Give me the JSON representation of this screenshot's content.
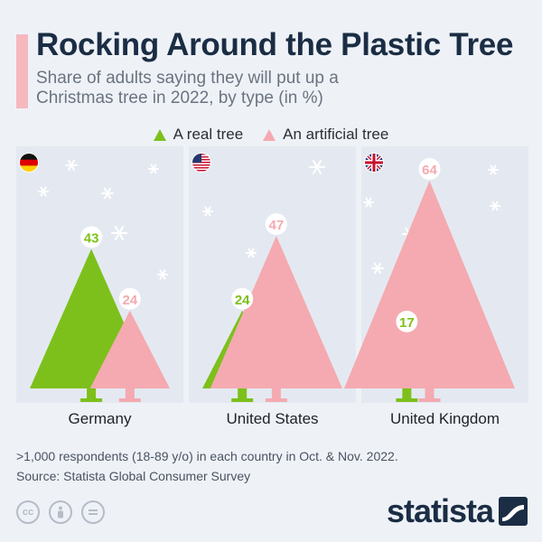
{
  "header": {
    "title": "Rocking Around the Plastic Tree",
    "subtitle": "Share of adults saying they will put up a Christmas tree in 2022, by type (in %)"
  },
  "colors": {
    "real": "#7dc01b",
    "artificial": "#f4aab0",
    "panel": "#e4e9f1",
    "text_dark": "#1b2d44"
  },
  "chart_data": {
    "type": "bar",
    "title": "Rocking Around the Plastic Tree",
    "subtitle": "Share of adults saying they will put up a Christmas tree in 2022, by type (in %)",
    "categories": [
      "Germany",
      "United States",
      "United Kingdom"
    ],
    "series": [
      {
        "name": "A real tree",
        "values": [
          43,
          24,
          17
        ]
      },
      {
        "name": "An artificial tree",
        "values": [
          24,
          47,
          64
        ]
      }
    ],
    "ylim": [
      0,
      64
    ],
    "xlabel": "",
    "ylabel": "",
    "legend": "top-center"
  },
  "footnote": {
    "line1": ">1,000 respondents (18-89 y/o) in each country in Oct. & Nov. 2022.",
    "line2": "Source: Statista Global Consumer Survey"
  },
  "license_icons": [
    "cc",
    "by",
    "nd"
  ],
  "brand": {
    "name": "statista"
  }
}
